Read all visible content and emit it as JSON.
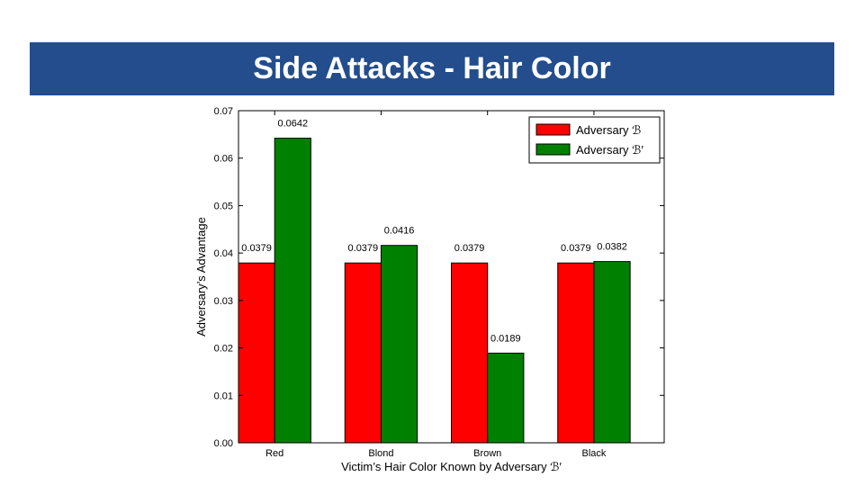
{
  "slide": {
    "title": "Side Attacks - Hair Color",
    "title_bar_color": "#234d8c"
  },
  "chart_data": {
    "type": "bar",
    "categories": [
      "Red",
      "Blond",
      "Brown",
      "Black"
    ],
    "series": [
      {
        "name": "Adversary ℬ",
        "color": "#ff0000",
        "values": [
          0.0379,
          0.0379,
          0.0379,
          0.0379
        ]
      },
      {
        "name": "Adversary ℬ′",
        "color": "#008000",
        "values": [
          0.0642,
          0.0416,
          0.0189,
          0.0382
        ]
      }
    ],
    "data_labels": [
      [
        "0.0379",
        "0.0379",
        "0.0379",
        "0.0379"
      ],
      [
        "0.0642",
        "0.0416",
        "0.0189",
        "0.0382"
      ]
    ],
    "xlabel": "Victim’s Hair Color Known by Adversary ℬ′",
    "ylabel": "Adversary’s Advantage",
    "ylim": [
      0,
      0.07
    ],
    "yticks": [
      0,
      0.01,
      0.02,
      0.03,
      0.04,
      0.05,
      0.06,
      0.07
    ],
    "ytick_labels": [
      "0.00",
      "0.01",
      "0.02",
      "0.03",
      "0.04",
      "0.05",
      "0.06",
      "0.07"
    ],
    "grid": false,
    "legend_position": "top-right"
  }
}
